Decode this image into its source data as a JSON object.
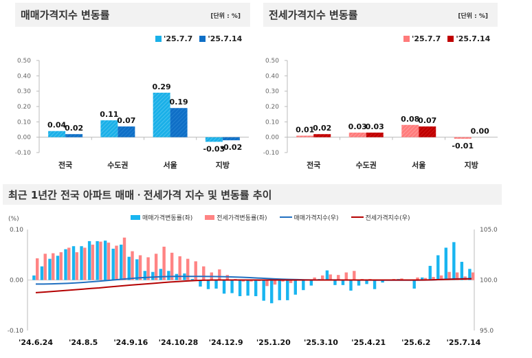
{
  "colors": {
    "sale_light": "#1ab0e8",
    "sale_dark": "#0f6fc6",
    "jeonse_light": "#ff7b7b",
    "jeonse_dark": "#c00000",
    "bar_sale": "#19b5f0",
    "bar_jeonse": "#ff8484",
    "line_sale": "#1f6fc0",
    "line_jeonse": "#b40000"
  },
  "headers": {
    "sale": "매매가격지수 변동률",
    "jeonse": "전세가격지수 변동률",
    "unit": "[단위 : %]",
    "trend": "최근 1년간 전국 아파트 매매ㆍ전세가격 지수 및 변동률 추이"
  },
  "chart_data": [
    {
      "type": "bar",
      "title": "매매가격지수 변동률",
      "unit": "[단위 : %]",
      "categories": [
        "전국",
        "수도권",
        "서울",
        "지방"
      ],
      "series": [
        {
          "name": "'25.7.7",
          "values": [
            0.04,
            0.11,
            0.29,
            -0.03
          ],
          "labels": [
            "0.04",
            "0.11",
            "0.29",
            "-0.03"
          ]
        },
        {
          "name": "'25.7.14",
          "values": [
            0.02,
            0.07,
            0.19,
            -0.02
          ],
          "labels": [
            "0.02",
            "0.07",
            "0.19",
            "-0.02"
          ]
        }
      ],
      "ylim": [
        -0.1,
        0.5
      ],
      "yticks": [
        "0.50",
        "0.40",
        "0.30",
        "0.20",
        "0.10",
        "0.00",
        "-0.10"
      ],
      "legend": "top-right"
    },
    {
      "type": "bar",
      "title": "전세가격지수 변동률",
      "unit": "[단위 : %]",
      "categories": [
        "전국",
        "수도권",
        "서울",
        "지방"
      ],
      "series": [
        {
          "name": "'25.7.7",
          "values": [
            0.01,
            0.03,
            0.08,
            -0.01
          ],
          "labels": [
            "0.01",
            "0.03",
            "0.08",
            "-0.01"
          ]
        },
        {
          "name": "'25.7.14",
          "values": [
            0.02,
            0.03,
            0.07,
            0.0
          ],
          "labels": [
            "0.02",
            "0.03",
            "0.07",
            "0.00"
          ]
        }
      ],
      "ylim": [
        -0.1,
        0.5
      ],
      "yticks": [
        "0.50",
        "0.40",
        "0.30",
        "0.20",
        "0.10",
        "0.00",
        "-0.10"
      ],
      "legend": "top-right"
    },
    {
      "type": "bar+line",
      "title": "최근 1년간 전국 아파트 매매ㆍ전세가격 지수 및 변동률 추이",
      "ylabel": "(%)",
      "ylim": [
        -0.1,
        0.1
      ],
      "yticks": [
        "0.10",
        "0.00",
        "-0.10"
      ],
      "y2lim": [
        95.0,
        105.0
      ],
      "y2ticks": [
        "105.0",
        "100.0",
        "95.0"
      ],
      "xticks": [
        "'24.6.24",
        "'24.8.5",
        "'24.9.16",
        "'24.10.28",
        "'24.12.9",
        "'25.1.20",
        "'25.3.10",
        "'25.4.21",
        "'25.6.2",
        "'25.7.14"
      ],
      "legend": "top",
      "series": [
        {
          "name": "매매가격변동률(좌)",
          "type": "bar",
          "values": [
            0.009,
            0.027,
            0.042,
            0.048,
            0.061,
            0.067,
            0.067,
            0.077,
            0.077,
            0.078,
            0.062,
            0.07,
            0.046,
            0.041,
            0.018,
            0.016,
            0.022,
            0.018,
            0.012,
            0.013,
            0.002,
            -0.013,
            -0.018,
            -0.017,
            -0.027,
            -0.026,
            -0.032,
            -0.031,
            -0.032,
            -0.041,
            -0.046,
            -0.04,
            -0.04,
            -0.029,
            -0.02,
            -0.011,
            0.002,
            0.019,
            -0.01,
            -0.01,
            -0.021,
            -0.011,
            -0.008,
            -0.018,
            -0.005,
            0.001,
            0.002,
            0.0,
            -0.017,
            0.005,
            0.028,
            0.049,
            0.064,
            0.075,
            0.036,
            0.022
          ]
        },
        {
          "name": "전세가격변동률(좌)",
          "type": "bar",
          "values": [
            0.043,
            0.052,
            0.053,
            0.055,
            0.064,
            0.055,
            0.064,
            0.07,
            0.076,
            0.074,
            0.068,
            0.084,
            0.057,
            0.049,
            0.045,
            0.052,
            0.066,
            0.054,
            0.047,
            0.042,
            0.037,
            0.027,
            0.015,
            0.021,
            0.01,
            0.002,
            -0.003,
            -0.003,
            -0.002,
            -0.012,
            -0.009,
            -0.003,
            -0.006,
            -0.001,
            0.0,
            0.005,
            0.009,
            0.011,
            0.01,
            0.015,
            0.018,
            0.002,
            0.002,
            0.0,
            0.001,
            0.002,
            0.003,
            0.001,
            0.005,
            0.004,
            0.006,
            0.009,
            0.016,
            0.015,
            0.007,
            0.015
          ]
        },
        {
          "name": "매매가격지수(우)",
          "type": "line",
          "values": [
            99.6,
            99.6,
            99.62,
            99.64,
            99.67,
            99.71,
            99.76,
            99.82,
            99.88,
            99.95,
            100.02,
            100.09,
            100.15,
            100.21,
            100.26,
            100.3,
            100.33,
            100.35,
            100.36,
            100.36,
            100.36,
            100.36,
            100.35,
            100.34,
            100.32,
            100.3,
            100.27,
            100.24,
            100.2,
            100.16,
            100.12,
            100.09,
            100.06,
            100.04,
            100.02,
            100.01,
            100.0,
            100.01,
            100.01,
            100.0,
            100.0,
            99.99,
            99.99,
            99.98,
            99.98,
            99.98,
            99.98,
            99.98,
            99.98,
            99.99,
            100.01,
            100.04,
            100.08,
            100.11,
            100.13,
            100.14
          ]
        },
        {
          "name": "전세가격지수(우)",
          "type": "line",
          "values": [
            98.75,
            98.8,
            98.86,
            98.92,
            98.98,
            99.04,
            99.1,
            99.16,
            99.22,
            99.29,
            99.36,
            99.43,
            99.5,
            99.56,
            99.62,
            99.68,
            99.74,
            99.8,
            99.85,
            99.9,
            99.94,
            99.97,
            99.99,
            100.0,
            100.0,
            100.0,
            100.0,
            100.0,
            100.0,
            100.0,
            100.0,
            100.0,
            100.0,
            100.0,
            100.0,
            100.0,
            100.0,
            100.0,
            100.0,
            100.0,
            100.0,
            100.0,
            100.0,
            100.0,
            100.0,
            100.0,
            100.0,
            100.0,
            100.0,
            100.0,
            100.02,
            100.04,
            100.06,
            100.08,
            100.1,
            100.12
          ]
        }
      ]
    }
  ]
}
